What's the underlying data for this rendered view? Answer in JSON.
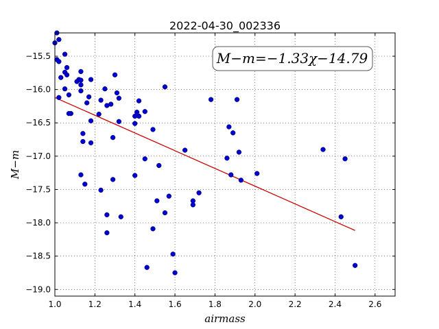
{
  "chart_data": {
    "type": "scatter",
    "title": "2022-04-30_002336",
    "xlabel": "airmass",
    "ylabel": "M−m",
    "annotation": "M−m=−1.33χ−14.79",
    "xlim": [
      1.0,
      2.7
    ],
    "ylim": [
      -19.1,
      -15.15
    ],
    "xticks": [
      1.0,
      1.2,
      1.4,
      1.6,
      1.8,
      2.0,
      2.2,
      2.4,
      2.6
    ],
    "xtick_labels": [
      "1.0",
      "1.2",
      "1.4",
      "1.6",
      "1.8",
      "2.0",
      "2.2",
      "2.4",
      "2.6"
    ],
    "yticks": [
      -15.5,
      -16.0,
      -16.5,
      -17.0,
      -17.5,
      -18.0,
      -18.5,
      -19.0
    ],
    "ytick_labels": [
      "−15.5",
      "−16.0",
      "−16.5",
      "−17.0",
      "−17.5",
      "−18.0",
      "−18.5",
      "−19.0"
    ],
    "grid": true,
    "point_color": "#0000cc",
    "fit_color": "#cc0000",
    "fit": {
      "slope": -1.33,
      "intercept": -14.79,
      "x_range": [
        1.0,
        2.5
      ]
    },
    "points": [
      {
        "x": 1.0,
        "y": -15.3
      },
      {
        "x": 1.01,
        "y": -15.15
      },
      {
        "x": 1.02,
        "y": -15.25
      },
      {
        "x": 1.01,
        "y": -15.55
      },
      {
        "x": 1.02,
        "y": -15.58
      },
      {
        "x": 1.03,
        "y": -15.82
      },
      {
        "x": 1.05,
        "y": -15.47
      },
      {
        "x": 1.05,
        "y": -15.74
      },
      {
        "x": 1.06,
        "y": -15.78
      },
      {
        "x": 1.06,
        "y": -15.67
      },
      {
        "x": 1.02,
        "y": -16.12
      },
      {
        "x": 1.05,
        "y": -15.99
      },
      {
        "x": 1.07,
        "y": -16.08
      },
      {
        "x": 1.08,
        "y": -16.36
      },
      {
        "x": 1.07,
        "y": -16.36
      },
      {
        "x": 1.11,
        "y": -15.88
      },
      {
        "x": 1.12,
        "y": -15.85
      },
      {
        "x": 1.13,
        "y": -15.86
      },
      {
        "x": 1.13,
        "y": -15.93
      },
      {
        "x": 1.13,
        "y": -15.73
      },
      {
        "x": 1.13,
        "y": -16.02
      },
      {
        "x": 1.16,
        "y": -16.2
      },
      {
        "x": 1.17,
        "y": -16.11
      },
      {
        "x": 1.18,
        "y": -15.85
      },
      {
        "x": 1.14,
        "y": -16.66
      },
      {
        "x": 1.14,
        "y": -16.78
      },
      {
        "x": 1.18,
        "y": -16.47
      },
      {
        "x": 1.18,
        "y": -16.8
      },
      {
        "x": 1.13,
        "y": -17.28
      },
      {
        "x": 1.15,
        "y": -17.42
      },
      {
        "x": 1.22,
        "y": -16.37
      },
      {
        "x": 1.23,
        "y": -16.16
      },
      {
        "x": 1.25,
        "y": -15.99
      },
      {
        "x": 1.26,
        "y": -16.24
      },
      {
        "x": 1.28,
        "y": -16.22
      },
      {
        "x": 1.3,
        "y": -15.78
      },
      {
        "x": 1.31,
        "y": -16.05
      },
      {
        "x": 1.32,
        "y": -16.13
      },
      {
        "x": 1.32,
        "y": -16.48
      },
      {
        "x": 1.29,
        "y": -16.72
      },
      {
        "x": 1.29,
        "y": -17.35
      },
      {
        "x": 1.23,
        "y": -17.51
      },
      {
        "x": 1.26,
        "y": -17.88
      },
      {
        "x": 1.33,
        "y": -17.91
      },
      {
        "x": 1.26,
        "y": -18.15
      },
      {
        "x": 1.4,
        "y": -16.4
      },
      {
        "x": 1.41,
        "y": -16.34
      },
      {
        "x": 1.42,
        "y": -16.4
      },
      {
        "x": 1.42,
        "y": -16.17
      },
      {
        "x": 1.4,
        "y": -16.51
      },
      {
        "x": 1.45,
        "y": -16.33
      },
      {
        "x": 1.49,
        "y": -16.6
      },
      {
        "x": 1.45,
        "y": -17.04
      },
      {
        "x": 1.4,
        "y": -17.29
      },
      {
        "x": 1.52,
        "y": -17.14
      },
      {
        "x": 1.55,
        "y": -15.96
      },
      {
        "x": 1.51,
        "y": -17.67
      },
      {
        "x": 1.57,
        "y": -17.6
      },
      {
        "x": 1.55,
        "y": -17.85
      },
      {
        "x": 1.49,
        "y": -18.09
      },
      {
        "x": 1.46,
        "y": -18.67
      },
      {
        "x": 1.59,
        "y": -18.47
      },
      {
        "x": 1.6,
        "y": -18.75
      },
      {
        "x": 1.65,
        "y": -16.91
      },
      {
        "x": 1.69,
        "y": -17.67
      },
      {
        "x": 1.69,
        "y": -17.73
      },
      {
        "x": 1.72,
        "y": -17.55
      },
      {
        "x": 1.78,
        "y": -16.15
      },
      {
        "x": 1.87,
        "y": -16.56
      },
      {
        "x": 1.89,
        "y": -16.65
      },
      {
        "x": 1.86,
        "y": -17.03
      },
      {
        "x": 1.88,
        "y": -17.28
      },
      {
        "x": 1.91,
        "y": -16.15
      },
      {
        "x": 1.92,
        "y": -16.94
      },
      {
        "x": 1.93,
        "y": -17.36
      },
      {
        "x": 2.01,
        "y": -17.26
      },
      {
        "x": 2.34,
        "y": -16.9
      },
      {
        "x": 2.45,
        "y": -17.04
      },
      {
        "x": 2.43,
        "y": -17.91
      },
      {
        "x": 2.5,
        "y": -18.64
      }
    ]
  }
}
